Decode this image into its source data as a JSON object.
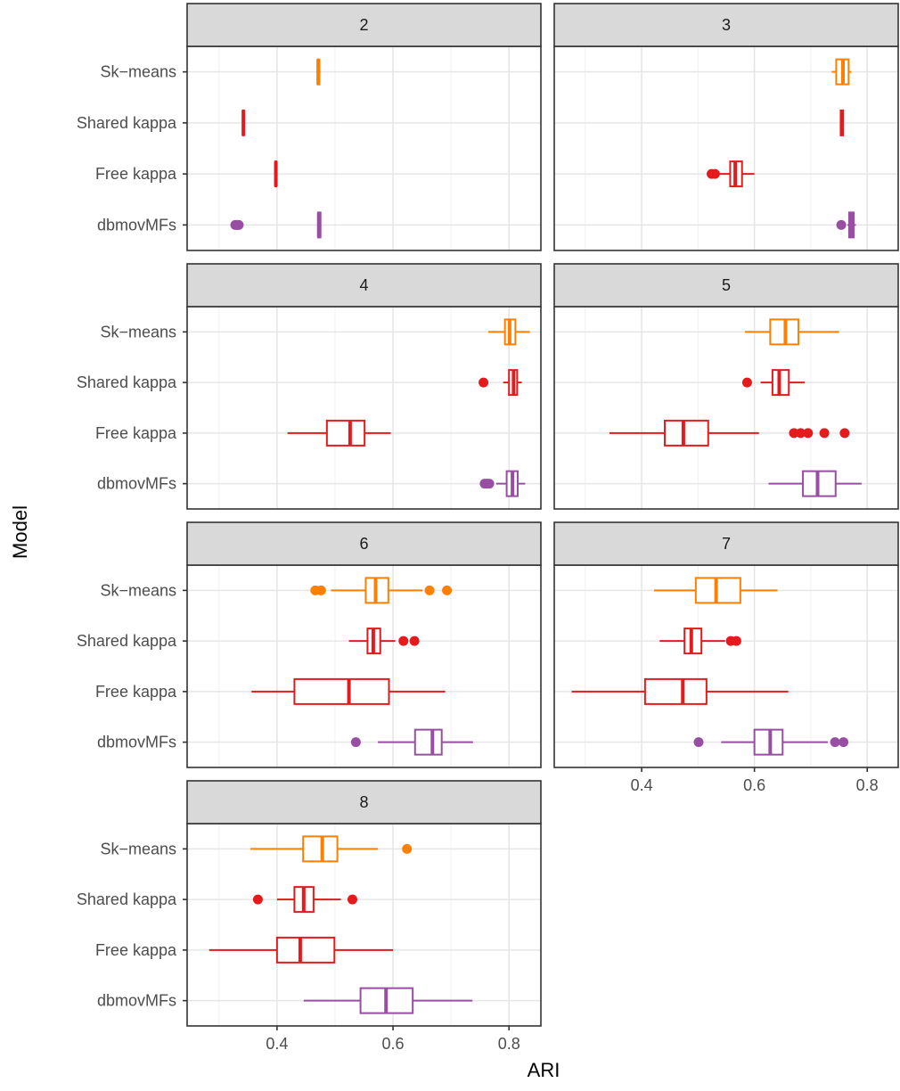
{
  "chart_data": {
    "type": "boxplot",
    "layout": "facet-wrap",
    "xlabel": "ARI",
    "ylabel": "Model",
    "xlim": [
      0.245,
      0.855
    ],
    "xticks": [
      0.4,
      0.6,
      0.8
    ],
    "xtick_labels": [
      "0.4",
      "0.6",
      "0.8"
    ],
    "grid": true,
    "legend": "none",
    "categories": [
      "Sk−means",
      "Shared kappa",
      "Free kappa",
      "dbmovMFs"
    ],
    "colors": {
      "Sk−means": "#FF7F00",
      "Shared kappa": "#E41A1C",
      "Free kappa": "#E41A1C",
      "dbmovMFs": "#984EA3"
    },
    "facets": [
      {
        "label": "2",
        "boxes": [
          {
            "category": "Sk−means",
            "min": 0.468,
            "q1": 0.47,
            "median": 0.471,
            "q3": 0.473,
            "max": 0.475,
            "outliers": []
          },
          {
            "category": "Shared kappa",
            "min": 0.34,
            "q1": 0.341,
            "median": 0.342,
            "q3": 0.343,
            "max": 0.345,
            "outliers": []
          },
          {
            "category": "Free kappa",
            "min": 0.397,
            "q1": 0.397,
            "median": 0.398,
            "q3": 0.398,
            "max": 0.399,
            "outliers": []
          },
          {
            "category": "dbmovMFs",
            "min": 0.47,
            "q1": 0.471,
            "median": 0.472,
            "q3": 0.475,
            "max": 0.476,
            "outliers": [
              0.328,
              0.33,
              0.332,
              0.334
            ]
          }
        ]
      },
      {
        "label": "3",
        "boxes": [
          {
            "category": "Sk−means",
            "min": 0.737,
            "q1": 0.745,
            "median": 0.757,
            "q3": 0.767,
            "max": 0.772,
            "outliers": []
          },
          {
            "category": "Shared kappa",
            "min": 0.752,
            "q1": 0.753,
            "median": 0.755,
            "q3": 0.757,
            "max": 0.758,
            "outliers": []
          },
          {
            "category": "Free kappa",
            "min": 0.535,
            "q1": 0.557,
            "median": 0.566,
            "q3": 0.578,
            "max": 0.6,
            "outliers": [
              0.524,
              0.53
            ]
          },
          {
            "category": "dbmovMFs",
            "min": 0.765,
            "q1": 0.768,
            "median": 0.772,
            "q3": 0.776,
            "max": 0.78,
            "outliers": [
              0.754
            ]
          }
        ]
      },
      {
        "label": "4",
        "boxes": [
          {
            "category": "Sk−means",
            "min": 0.764,
            "q1": 0.793,
            "median": 0.801,
            "q3": 0.811,
            "max": 0.836,
            "outliers": []
          },
          {
            "category": "Shared kappa",
            "min": 0.79,
            "q1": 0.8,
            "median": 0.808,
            "q3": 0.814,
            "max": 0.822,
            "outliers": [
              0.756
            ]
          },
          {
            "category": "Free kappa",
            "min": 0.418,
            "q1": 0.486,
            "median": 0.526,
            "q3": 0.551,
            "max": 0.596,
            "outliers": []
          },
          {
            "category": "dbmovMFs",
            "min": 0.778,
            "q1": 0.796,
            "median": 0.806,
            "q3": 0.815,
            "max": 0.828,
            "outliers": [
              0.758,
              0.762,
              0.766
            ]
          }
        ]
      },
      {
        "label": "5",
        "boxes": [
          {
            "category": "Sk−means",
            "min": 0.583,
            "q1": 0.628,
            "median": 0.655,
            "q3": 0.678,
            "max": 0.75,
            "outliers": []
          },
          {
            "category": "Shared kappa",
            "min": 0.611,
            "q1": 0.632,
            "median": 0.644,
            "q3": 0.661,
            "max": 0.689,
            "outliers": [
              0.587
            ]
          },
          {
            "category": "Free kappa",
            "min": 0.343,
            "q1": 0.441,
            "median": 0.474,
            "q3": 0.518,
            "max": 0.608,
            "outliers": [
              0.67,
              0.682,
              0.695,
              0.724,
              0.76
            ]
          },
          {
            "category": "dbmovMFs",
            "min": 0.625,
            "q1": 0.686,
            "median": 0.712,
            "q3": 0.744,
            "max": 0.79,
            "outliers": []
          }
        ]
      },
      {
        "label": "6",
        "boxes": [
          {
            "category": "Sk−means",
            "min": 0.493,
            "q1": 0.553,
            "median": 0.57,
            "q3": 0.592,
            "max": 0.651,
            "outliers": [
              0.466,
              0.476,
              0.663,
              0.693
            ]
          },
          {
            "category": "Shared kappa",
            "min": 0.524,
            "q1": 0.556,
            "median": 0.566,
            "q3": 0.578,
            "max": 0.604,
            "outliers": [
              0.618,
              0.637
            ]
          },
          {
            "category": "Free kappa",
            "min": 0.356,
            "q1": 0.43,
            "median": 0.524,
            "q3": 0.593,
            "max": 0.69,
            "outliers": []
          },
          {
            "category": "dbmovMFs",
            "min": 0.574,
            "q1": 0.638,
            "median": 0.668,
            "q3": 0.684,
            "max": 0.738,
            "outliers": [
              0.536
            ]
          }
        ]
      },
      {
        "label": "7",
        "boxes": [
          {
            "category": "Sk−means",
            "min": 0.422,
            "q1": 0.496,
            "median": 0.532,
            "q3": 0.575,
            "max": 0.641,
            "outliers": []
          },
          {
            "category": "Shared kappa",
            "min": 0.432,
            "q1": 0.476,
            "median": 0.488,
            "q3": 0.506,
            "max": 0.548,
            "outliers": [
              0.558,
              0.568
            ]
          },
          {
            "category": "Free kappa",
            "min": 0.276,
            "q1": 0.406,
            "median": 0.473,
            "q3": 0.515,
            "max": 0.66,
            "outliers": []
          },
          {
            "category": "dbmovMFs",
            "min": 0.541,
            "q1": 0.6,
            "median": 0.628,
            "q3": 0.65,
            "max": 0.73,
            "outliers": [
              0.501,
              0.743,
              0.758
            ]
          }
        ]
      },
      {
        "label": "8",
        "boxes": [
          {
            "category": "Sk−means",
            "min": 0.354,
            "q1": 0.445,
            "median": 0.478,
            "q3": 0.504,
            "max": 0.574,
            "outliers": [
              0.624
            ]
          },
          {
            "category": "Shared kappa",
            "min": 0.4,
            "q1": 0.43,
            "median": 0.446,
            "q3": 0.463,
            "max": 0.51,
            "outliers": [
              0.367,
              0.53
            ]
          },
          {
            "category": "Free kappa",
            "min": 0.283,
            "q1": 0.4,
            "median": 0.44,
            "q3": 0.499,
            "max": 0.6,
            "outliers": []
          },
          {
            "category": "dbmovMFs",
            "min": 0.446,
            "q1": 0.544,
            "median": 0.588,
            "q3": 0.634,
            "max": 0.737,
            "outliers": []
          }
        ]
      }
    ]
  }
}
